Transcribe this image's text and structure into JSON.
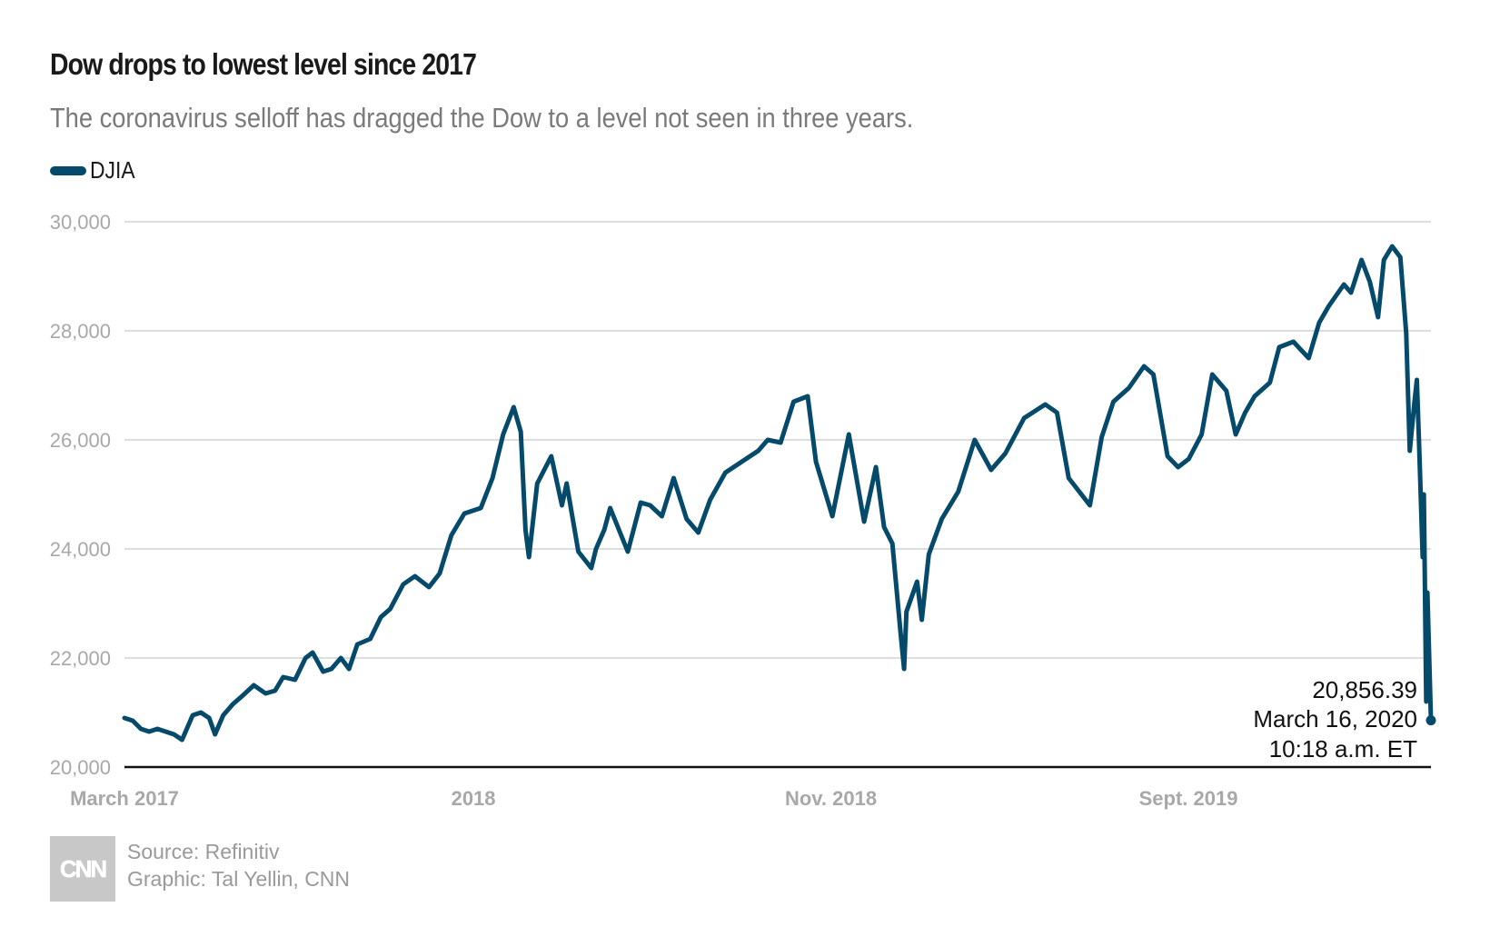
{
  "header": {
    "title": "Dow drops to lowest level since 2017",
    "subtitle": "The coronavirus selloff has dragged the Dow to a level not seen in three years.",
    "legend_label": "DJIA"
  },
  "colors": {
    "line": "#054a6a",
    "grid": "#dddddd",
    "axis": "#111111",
    "tick": "#a8a8a8"
  },
  "annotation": {
    "value": "20,856.39",
    "date": "March 16, 2020",
    "time": "10:18 a.m. ET"
  },
  "footer": {
    "logo": "CNN",
    "source": "Source: Refinitiv",
    "credit": "Graphic: Tal Yellin, CNN"
  },
  "chart_data": {
    "type": "line",
    "title": "Dow drops to lowest level since 2017",
    "subtitle": "The coronavirus selloff has dragged the Dow to a level not seen in three years.",
    "xlabel": "",
    "ylabel": "",
    "x_range": [
      "2017-03-01",
      "2020-03-16"
    ],
    "ylim": [
      20000,
      30000
    ],
    "yticks": [
      20000,
      22000,
      24000,
      26000,
      28000,
      30000
    ],
    "ytick_labels": [
      "20,000",
      "22,000",
      "24,000",
      "26,000",
      "28,000",
      "30,000"
    ],
    "xticks": [
      {
        "date": "2017-03-01",
        "label": "March 2017"
      },
      {
        "date": "2018-01-01",
        "label": "2018"
      },
      {
        "date": "2018-11-01",
        "label": "Nov. 2018"
      },
      {
        "date": "2019-09-01",
        "label": "Sept. 2019"
      }
    ],
    "grid": true,
    "legend": "top-left",
    "series": [
      {
        "name": "DJIA",
        "points": [
          [
            "2017-03-01",
            20900
          ],
          [
            "2017-03-08",
            20850
          ],
          [
            "2017-03-15",
            20700
          ],
          [
            "2017-03-22",
            20650
          ],
          [
            "2017-03-29",
            20700
          ],
          [
            "2017-04-05",
            20650
          ],
          [
            "2017-04-12",
            20600
          ],
          [
            "2017-04-19",
            20500
          ],
          [
            "2017-04-24",
            20750
          ],
          [
            "2017-04-28",
            20950
          ],
          [
            "2017-05-05",
            21000
          ],
          [
            "2017-05-12",
            20900
          ],
          [
            "2017-05-17",
            20600
          ],
          [
            "2017-05-24",
            20950
          ],
          [
            "2017-06-01",
            21150
          ],
          [
            "2017-06-09",
            21300
          ],
          [
            "2017-06-19",
            21500
          ],
          [
            "2017-06-29",
            21350
          ],
          [
            "2017-07-07",
            21400
          ],
          [
            "2017-07-14",
            21650
          ],
          [
            "2017-07-24",
            21600
          ],
          [
            "2017-08-02",
            22000
          ],
          [
            "2017-08-08",
            22100
          ],
          [
            "2017-08-17",
            21750
          ],
          [
            "2017-08-24",
            21800
          ],
          [
            "2017-09-01",
            22000
          ],
          [
            "2017-09-08",
            21800
          ],
          [
            "2017-09-15",
            22250
          ],
          [
            "2017-09-26",
            22350
          ],
          [
            "2017-10-05",
            22750
          ],
          [
            "2017-10-13",
            22900
          ],
          [
            "2017-10-24",
            23350
          ],
          [
            "2017-11-03",
            23500
          ],
          [
            "2017-11-15",
            23300
          ],
          [
            "2017-11-24",
            23550
          ],
          [
            "2017-12-04",
            24250
          ],
          [
            "2017-12-15",
            24650
          ],
          [
            "2017-12-29",
            24750
          ],
          [
            "2018-01-08",
            25300
          ],
          [
            "2018-01-17",
            26100
          ],
          [
            "2018-01-26",
            26600
          ],
          [
            "2018-02-01",
            26150
          ],
          [
            "2018-02-05",
            24350
          ],
          [
            "2018-02-08",
            23850
          ],
          [
            "2018-02-15",
            25200
          ],
          [
            "2018-02-27",
            25700
          ],
          [
            "2018-03-08",
            24800
          ],
          [
            "2018-03-12",
            25200
          ],
          [
            "2018-03-22",
            23950
          ],
          [
            "2018-04-02",
            23650
          ],
          [
            "2018-04-06",
            24000
          ],
          [
            "2018-04-13",
            24350
          ],
          [
            "2018-04-18",
            24750
          ],
          [
            "2018-05-03",
            23950
          ],
          [
            "2018-05-14",
            24850
          ],
          [
            "2018-05-22",
            24800
          ],
          [
            "2018-06-01",
            24600
          ],
          [
            "2018-06-11",
            25300
          ],
          [
            "2018-06-22",
            24550
          ],
          [
            "2018-07-02",
            24300
          ],
          [
            "2018-07-12",
            24900
          ],
          [
            "2018-07-25",
            25400
          ],
          [
            "2018-08-08",
            25600
          ],
          [
            "2018-08-22",
            25800
          ],
          [
            "2018-08-30",
            26000
          ],
          [
            "2018-09-10",
            25950
          ],
          [
            "2018-09-21",
            26700
          ],
          [
            "2018-10-03",
            26800
          ],
          [
            "2018-10-10",
            25600
          ],
          [
            "2018-10-24",
            24600
          ],
          [
            "2018-11-07",
            26100
          ],
          [
            "2018-11-20",
            24500
          ],
          [
            "2018-11-30",
            25500
          ],
          [
            "2018-12-07",
            24400
          ],
          [
            "2018-12-14",
            24100
          ],
          [
            "2018-12-21",
            22450
          ],
          [
            "2018-12-24",
            21800
          ],
          [
            "2018-12-26",
            22850
          ],
          [
            "2019-01-04",
            23400
          ],
          [
            "2019-01-08",
            22700
          ],
          [
            "2019-01-14",
            23900
          ],
          [
            "2019-01-25",
            24550
          ],
          [
            "2019-02-08",
            25050
          ],
          [
            "2019-02-22",
            26000
          ],
          [
            "2019-03-08",
            25450
          ],
          [
            "2019-03-20",
            25750
          ],
          [
            "2019-04-05",
            26400
          ],
          [
            "2019-04-23",
            26650
          ],
          [
            "2019-05-03",
            26500
          ],
          [
            "2019-05-13",
            25300
          ],
          [
            "2019-05-31",
            24800
          ],
          [
            "2019-06-10",
            26050
          ],
          [
            "2019-06-20",
            26700
          ],
          [
            "2019-07-03",
            26950
          ],
          [
            "2019-07-16",
            27350
          ],
          [
            "2019-07-24",
            27200
          ],
          [
            "2019-08-05",
            25700
          ],
          [
            "2019-08-14",
            25500
          ],
          [
            "2019-08-23",
            25650
          ],
          [
            "2019-09-03",
            26100
          ],
          [
            "2019-09-12",
            27200
          ],
          [
            "2019-09-24",
            26900
          ],
          [
            "2019-10-02",
            26100
          ],
          [
            "2019-10-10",
            26500
          ],
          [
            "2019-10-18",
            26800
          ],
          [
            "2019-10-31",
            27050
          ],
          [
            "2019-11-08",
            27700
          ],
          [
            "2019-11-20",
            27800
          ],
          [
            "2019-12-03",
            27500
          ],
          [
            "2019-12-12",
            28150
          ],
          [
            "2019-12-20",
            28450
          ],
          [
            "2020-01-02",
            28850
          ],
          [
            "2020-01-08",
            28700
          ],
          [
            "2020-01-17",
            29300
          ],
          [
            "2020-01-24",
            28900
          ],
          [
            "2020-01-31",
            28250
          ],
          [
            "2020-02-05",
            29300
          ],
          [
            "2020-02-12",
            29550
          ],
          [
            "2020-02-19",
            29350
          ],
          [
            "2020-02-24",
            27950
          ],
          [
            "2020-02-27",
            25800
          ],
          [
            "2020-03-02",
            26700
          ],
          [
            "2020-03-04",
            27100
          ],
          [
            "2020-03-06",
            25850
          ],
          [
            "2020-03-09",
            23850
          ],
          [
            "2020-03-10",
            25000
          ],
          [
            "2020-03-12",
            21200
          ],
          [
            "2020-03-13",
            23200
          ],
          [
            "2020-03-16",
            20856.39
          ]
        ]
      }
    ],
    "annotations": [
      {
        "date": "2020-03-16",
        "value": 20856.39,
        "text": [
          "20,856.39",
          "March 16, 2020",
          "10:18 a.m. ET"
        ]
      }
    ]
  }
}
